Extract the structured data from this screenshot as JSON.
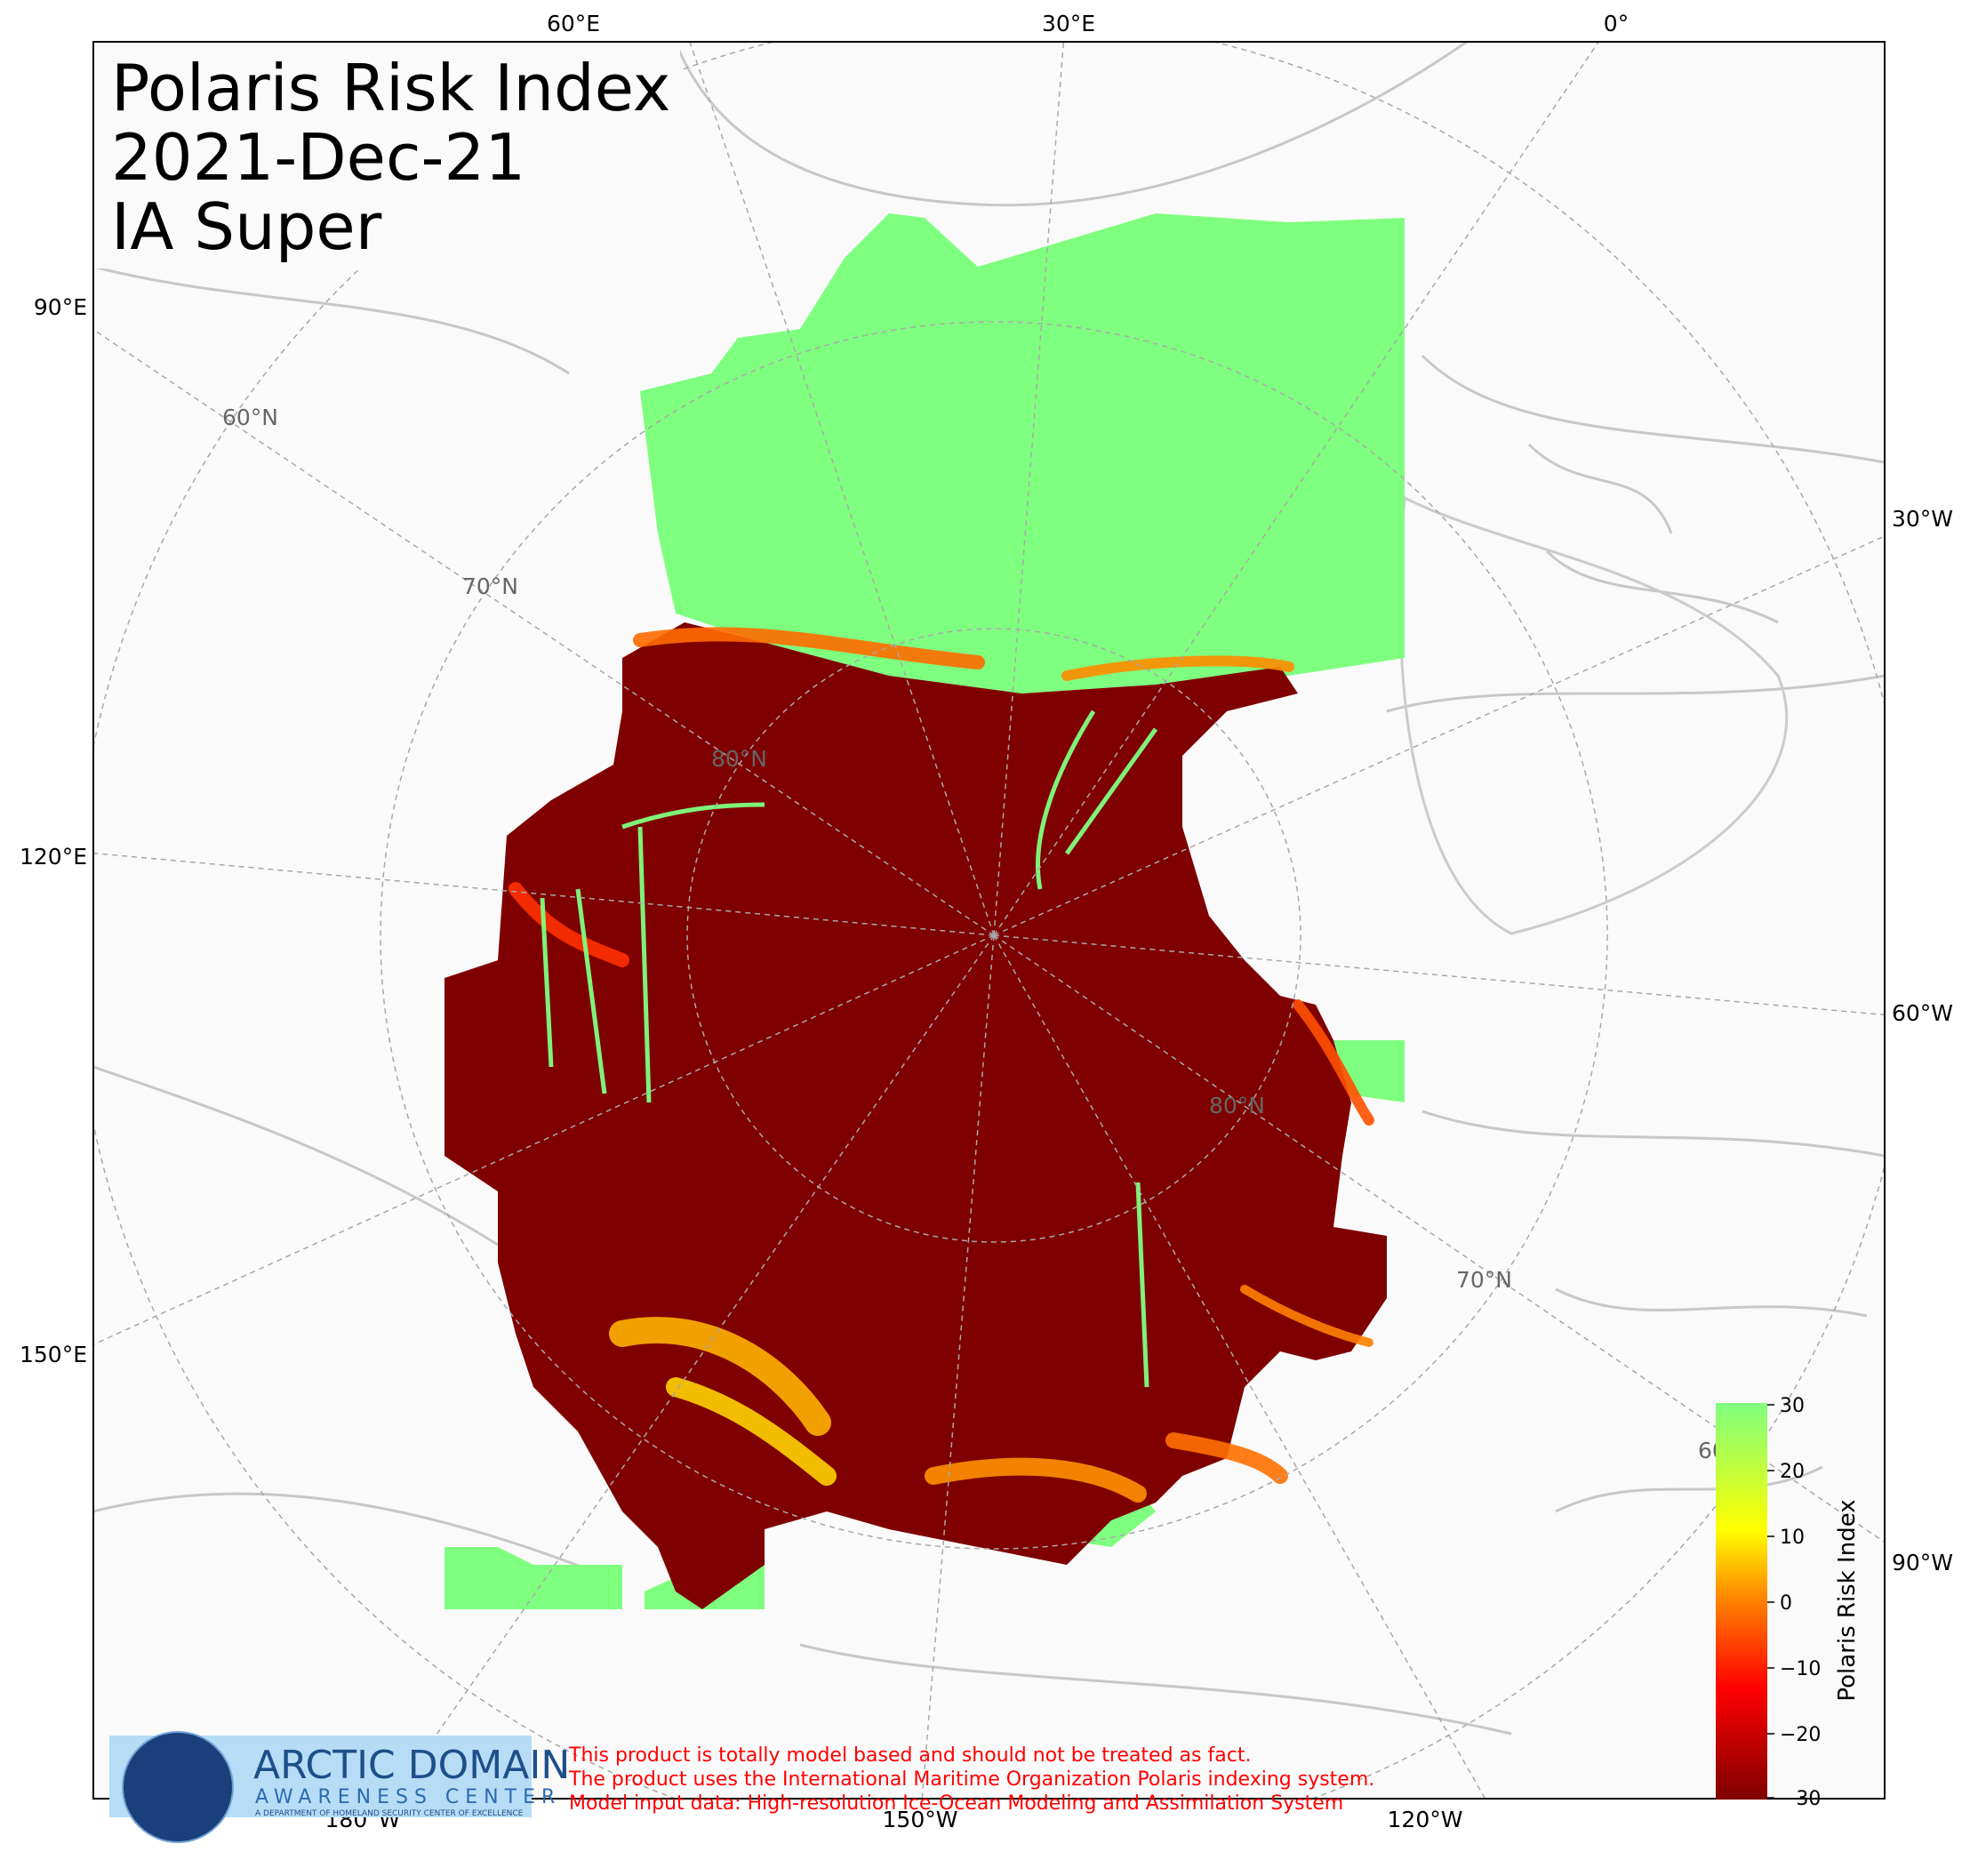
{
  "title": {
    "line1": "Polaris Risk Index",
    "line2": "2021-Dec-21",
    "line3": "IA Super"
  },
  "ticks": {
    "top": [
      "60°E",
      "30°E",
      "0°"
    ],
    "bottom": [
      "180°W",
      "150°W",
      "120°W"
    ],
    "left": [
      "90°E",
      "120°E",
      "150°E"
    ],
    "right": [
      "30°W",
      "60°W",
      "90°W"
    ]
  },
  "latitude_labels": [
    "60°N",
    "70°N",
    "80°N",
    "80°N",
    "70°N",
    "60°N"
  ],
  "colorbar": {
    "label": "Polaris Risk Index",
    "min": -30,
    "max": 30,
    "ticks": [
      "30",
      "20",
      "10",
      "0",
      "−10",
      "−20",
      "−30"
    ],
    "colors": [
      "#7fff7f",
      "#ffff00",
      "#ff8000",
      "#ff0000",
      "#7f0000"
    ]
  },
  "logo": {
    "name": "ARCTIC DOMAIN",
    "sub": "AWARENESS CENTER",
    "tagline": "A DEPARTMENT OF HOMELAND SECURITY CENTER OF EXCELLENCE"
  },
  "disclaimer": [
    "This product is totally model based and should not be treated as fact.",
    "The product uses the International Maritime Organization Polaris indexing system.",
    "Model input data: High-resolution Ice-Ocean Modeling and Assimilation System"
  ],
  "colors": {
    "ice_high_risk": "#7f0000",
    "open_water": "#7fff7f",
    "land": "#fafafa",
    "coastline": "#c8c8c8",
    "graticule": "#a8a8a8"
  }
}
